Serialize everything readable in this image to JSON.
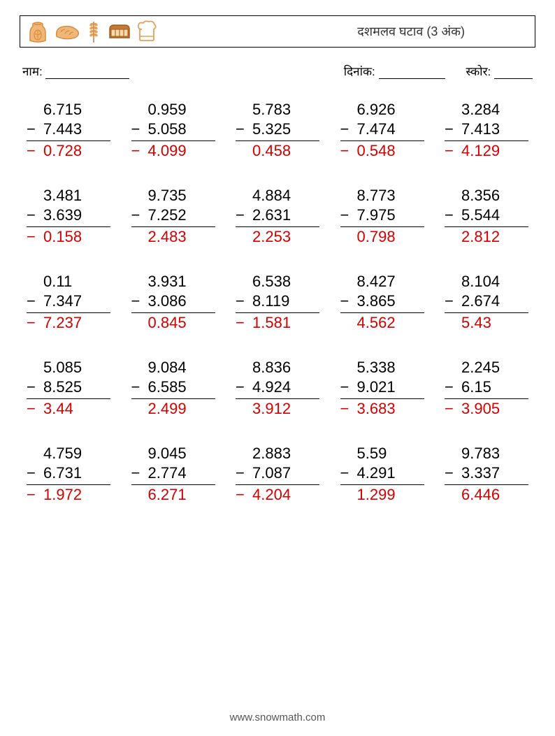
{
  "header": {
    "title": "दशमलव घटाव (3 अंक)",
    "icons": [
      "flour-sack",
      "bread-roll",
      "wheat-stalk",
      "bread-loaf",
      "chef-hat"
    ]
  },
  "meta": {
    "name_label": "नाम:",
    "date_label": "दिनांक:",
    "score_label": "स्कोर:",
    "blank_widths": {
      "name": 120,
      "date": 95,
      "score": 55
    }
  },
  "style": {
    "answer_color": "#d40000",
    "text_color": "#000000",
    "font_size_problem": 22,
    "font_size_meta": 17,
    "font_size_title": 18,
    "border_color": "#000000",
    "icon_colors": {
      "flour-sack": "#e8a05a",
      "bread-roll": "#e8a05a",
      "wheat-stalk": "#d98c3a",
      "bread-loaf": "#c47a32",
      "chef-hat": "#e8a05a"
    }
  },
  "problems": [
    [
      {
        "a": "6.715",
        "b": "7.443",
        "ans": "−0.728",
        "neg": true
      },
      {
        "a": "0.959",
        "b": "5.058",
        "ans": "−4.099",
        "neg": true
      },
      {
        "a": "5.783",
        "b": "5.325",
        "ans": "0.458",
        "neg": false
      },
      {
        "a": "6.926",
        "b": "7.474",
        "ans": "−0.548",
        "neg": true
      },
      {
        "a": "3.284",
        "b": "7.413",
        "ans": "−4.129",
        "neg": true
      }
    ],
    [
      {
        "a": "3.481",
        "b": "3.639",
        "ans": "−0.158",
        "neg": true
      },
      {
        "a": "9.735",
        "b": "7.252",
        "ans": "2.483",
        "neg": false
      },
      {
        "a": "4.884",
        "b": "2.631",
        "ans": "2.253",
        "neg": false
      },
      {
        "a": "8.773",
        "b": "7.975",
        "ans": "0.798",
        "neg": false
      },
      {
        "a": "8.356",
        "b": "5.544",
        "ans": "2.812",
        "neg": false
      }
    ],
    [
      {
        "a": "0.11",
        "b": "7.347",
        "ans": "−7.237",
        "neg": true
      },
      {
        "a": "3.931",
        "b": "3.086",
        "ans": "0.845",
        "neg": false
      },
      {
        "a": "6.538",
        "b": "8.119",
        "ans": "−1.581",
        "neg": true
      },
      {
        "a": "8.427",
        "b": "3.865",
        "ans": "4.562",
        "neg": false
      },
      {
        "a": "8.104",
        "b": "2.674",
        "ans": "5.43",
        "neg": false
      }
    ],
    [
      {
        "a": "5.085",
        "b": "8.525",
        "ans": "−3.44",
        "neg": true
      },
      {
        "a": "9.084",
        "b": "6.585",
        "ans": "2.499",
        "neg": false
      },
      {
        "a": "8.836",
        "b": "4.924",
        "ans": "3.912",
        "neg": false
      },
      {
        "a": "5.338",
        "b": "9.021",
        "ans": "−3.683",
        "neg": true
      },
      {
        "a": "2.245",
        "b": "6.15",
        "ans": "−3.905",
        "neg": true
      }
    ],
    [
      {
        "a": "4.759",
        "b": "6.731",
        "ans": "−1.972",
        "neg": true
      },
      {
        "a": "9.045",
        "b": "2.774",
        "ans": "6.271",
        "neg": false
      },
      {
        "a": "2.883",
        "b": "7.087",
        "ans": "−4.204",
        "neg": true
      },
      {
        "a": "5.59",
        "b": "4.291",
        "ans": "1.299",
        "neg": false
      },
      {
        "a": "9.783",
        "b": "3.337",
        "ans": "6.446",
        "neg": false
      }
    ]
  ],
  "footer": "www.snowmath.com"
}
